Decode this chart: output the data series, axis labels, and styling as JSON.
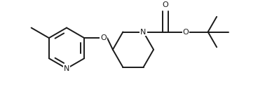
{
  "bg_color": "#ffffff",
  "line_color": "#1a1a1a",
  "line_width": 1.4,
  "figsize": [
    3.88,
    1.34
  ],
  "dpi": 100,
  "xlim": [
    0.0,
    7.8
  ],
  "ylim": [
    0.0,
    3.2
  ]
}
